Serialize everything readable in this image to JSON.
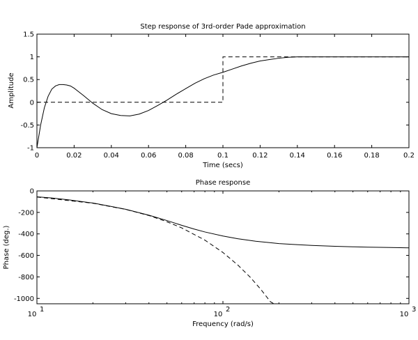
{
  "chart_data": [
    {
      "type": "line",
      "title": "Step response of 3rd-order Pade approximation",
      "xlabel": "Time (secs)",
      "ylabel": "Amplitude",
      "xlim": [
        0,
        0.2
      ],
      "ylim": [
        -1,
        1.5
      ],
      "xticks": [
        "0",
        "0.02",
        "0.04",
        "0.06",
        "0.08",
        "0.1",
        "0.12",
        "0.14",
        "0.16",
        "0.18",
        "0.2"
      ],
      "xtick_values": [
        0,
        0.02,
        0.04,
        0.06,
        0.08,
        0.1,
        0.12,
        0.14,
        0.16,
        0.18,
        0.2
      ],
      "yticks": [
        "-1",
        "-0.5",
        "0",
        "0.5",
        "1",
        "1.5"
      ],
      "ytick_values": [
        -1,
        -0.5,
        0,
        0.5,
        1,
        1.5
      ],
      "grid": false,
      "legend": "none",
      "series": [
        {
          "style": "solid",
          "x": [
            0,
            0.002,
            0.004,
            0.006,
            0.008,
            0.01,
            0.012,
            0.014,
            0.016,
            0.018,
            0.02,
            0.025,
            0.03,
            0.035,
            0.04,
            0.045,
            0.05,
            0.055,
            0.06,
            0.065,
            0.07,
            0.075,
            0.08,
            0.085,
            0.09,
            0.095,
            0.1,
            0.105,
            0.11,
            0.115,
            0.12,
            0.125,
            0.13,
            0.135,
            0.14,
            0.15,
            0.16,
            0.17,
            0.18,
            0.19,
            0.2
          ],
          "y": [
            -1,
            -0.5,
            -0.12,
            0.13,
            0.29,
            0.36,
            0.39,
            0.39,
            0.38,
            0.36,
            0.31,
            0.15,
            -0.02,
            -0.16,
            -0.25,
            -0.29,
            -0.3,
            -0.26,
            -0.18,
            -0.07,
            0.05,
            0.18,
            0.3,
            0.42,
            0.52,
            0.6,
            0.66,
            0.73,
            0.8,
            0.86,
            0.91,
            0.94,
            0.97,
            0.99,
            1.0,
            1.0,
            1.0,
            1.0,
            1.0,
            1.0,
            1.0
          ]
        },
        {
          "style": "dashed",
          "x": [
            0,
            0.1,
            0.1,
            0.2
          ],
          "y": [
            0,
            0,
            1,
            1
          ]
        }
      ]
    },
    {
      "type": "line",
      "title": "Phase response",
      "xlabel": "Frequency (rad/s)",
      "ylabel": "Phase (deg.)",
      "xscale": "log",
      "xlim": [
        10,
        1000
      ],
      "ylim": [
        -1050,
        0
      ],
      "xticks": [
        {
          "base": "10",
          "exp": "1"
        },
        {
          "base": "10",
          "exp": "2"
        },
        {
          "base": "10",
          "exp": "3"
        }
      ],
      "xtick_values": [
        10,
        100,
        1000
      ],
      "yticks": [
        "-1000",
        "-800",
        "-600",
        "-400",
        "-200",
        "0"
      ],
      "ytick_values": [
        -1000,
        -800,
        -600,
        -400,
        -200,
        0
      ],
      "grid": false,
      "legend": "none",
      "series": [
        {
          "style": "solid",
          "x": [
            10,
            12,
            15,
            20,
            25,
            30,
            40,
            50,
            60,
            70,
            80,
            100,
            120,
            150,
            200,
            250,
            300,
            400,
            500,
            600,
            700,
            800,
            1000
          ],
          "y": [
            -55,
            -66,
            -84,
            -113,
            -144,
            -171,
            -226,
            -276,
            -320,
            -355,
            -382,
            -420,
            -445,
            -468,
            -490,
            -500,
            -507,
            -515,
            -520,
            -523,
            -525,
            -527,
            -530
          ]
        },
        {
          "style": "dashed",
          "x": [
            10,
            20,
            30,
            40,
            50,
            60,
            80,
            100,
            120,
            140,
            160,
            180,
            188
          ],
          "y": [
            -57,
            -115,
            -172,
            -229,
            -287,
            -344,
            -458,
            -573,
            -688,
            -802,
            -917,
            -1031,
            -1050
          ]
        }
      ]
    }
  ]
}
